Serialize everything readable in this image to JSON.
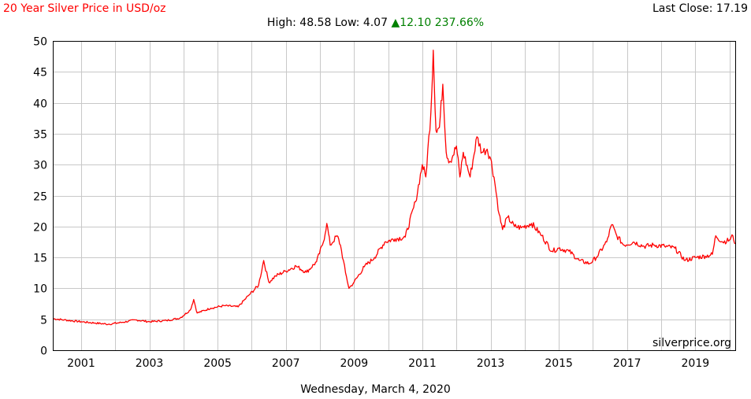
{
  "header": {
    "title": "20 Year Silver Price in USD/oz",
    "last_close_label": "Last Close:",
    "last_close_value": "17.19",
    "high_label": "High:",
    "high_value": "48.58",
    "low_label": "Low:",
    "low_value": "4.07",
    "change_arrow": "▲",
    "change_value": "12.10",
    "change_percent": "237.66%"
  },
  "footer": {
    "date": "Wednesday, March 4, 2020"
  },
  "watermark": "silverprice.org",
  "colors": {
    "line": "#ff0000",
    "title": "#ff0000",
    "up": "#008000",
    "grid": "#c8c8c8",
    "axis": "#000000"
  },
  "chart_data": {
    "type": "line",
    "title": "20 Year Silver Price in USD/oz",
    "xlabel": "",
    "ylabel": "",
    "grid": true,
    "xlim": [
      2000.17,
      2020.17
    ],
    "ylim": [
      0,
      50
    ],
    "x_ticks": [
      2001,
      2003,
      2005,
      2007,
      2009,
      2011,
      2013,
      2015,
      2017,
      2019
    ],
    "x_tick_labels": [
      "2001",
      "2003",
      "2005",
      "2007",
      "2009",
      "2011",
      "2013",
      "2015",
      "2017",
      "2019"
    ],
    "y_ticks": [
      0,
      5,
      10,
      15,
      20,
      25,
      30,
      35,
      40,
      45,
      50
    ],
    "y_tick_labels": [
      "0",
      "5",
      "10",
      "15",
      "20",
      "25",
      "30",
      "35",
      "40",
      "45",
      "50"
    ],
    "series": [
      {
        "x": [
          2000.17,
          2000.5,
          2001.0,
          2001.4,
          2001.8,
          2002.2,
          2002.6,
          2003.0,
          2003.5,
          2003.9,
          2004.2,
          2004.3,
          2004.4,
          2004.8,
          2005.2,
          2005.6,
          2005.9,
          2006.2,
          2006.35,
          2006.5,
          2006.7,
          2007.0,
          2007.3,
          2007.6,
          2007.9,
          2008.1,
          2008.2,
          2008.3,
          2008.5,
          2008.6,
          2008.75,
          2008.85,
          2009.0,
          2009.3,
          2009.6,
          2009.9,
          2010.2,
          2010.5,
          2010.8,
          2011.0,
          2011.1,
          2011.25,
          2011.32,
          2011.4,
          2011.5,
          2011.6,
          2011.7,
          2011.8,
          2011.9,
          2012.0,
          2012.1,
          2012.2,
          2012.4,
          2012.6,
          2012.75,
          2012.9,
          2013.0,
          2013.1,
          2013.25,
          2013.35,
          2013.5,
          2013.7,
          2013.9,
          2014.2,
          2014.5,
          2014.8,
          2015.0,
          2015.3,
          2015.6,
          2015.9,
          2016.1,
          2016.4,
          2016.55,
          2016.7,
          2016.9,
          2017.2,
          2017.5,
          2017.8,
          2018.1,
          2018.4,
          2018.7,
          2019.0,
          2019.3,
          2019.5,
          2019.6,
          2019.8,
          2020.0,
          2020.1,
          2020.17
        ],
        "y": [
          5.1,
          4.9,
          4.6,
          4.4,
          4.2,
          4.5,
          4.9,
          4.6,
          4.8,
          5.2,
          6.5,
          8.2,
          6.0,
          6.8,
          7.2,
          7.0,
          8.8,
          10.5,
          14.5,
          11.0,
          12.0,
          12.8,
          13.6,
          12.6,
          14.3,
          17.5,
          20.5,
          17.0,
          18.5,
          17.0,
          12.5,
          10.0,
          11.0,
          13.5,
          15.0,
          17.5,
          18.0,
          18.3,
          24.0,
          30.0,
          28.0,
          38.5,
          48.5,
          35.5,
          36.0,
          43.0,
          32.0,
          30.5,
          31.5,
          33.0,
          28.0,
          32.0,
          28.0,
          34.5,
          32.0,
          32.5,
          31.0,
          28.0,
          22.0,
          19.5,
          21.5,
          20.0,
          19.8,
          20.5,
          18.5,
          16.0,
          16.5,
          16.0,
          14.5,
          14.0,
          15.0,
          17.5,
          20.3,
          18.5,
          17.0,
          17.5,
          16.8,
          17.0,
          16.8,
          16.5,
          14.5,
          15.0,
          15.2,
          15.5,
          18.5,
          17.5,
          17.8,
          18.5,
          17.2
        ]
      }
    ]
  }
}
